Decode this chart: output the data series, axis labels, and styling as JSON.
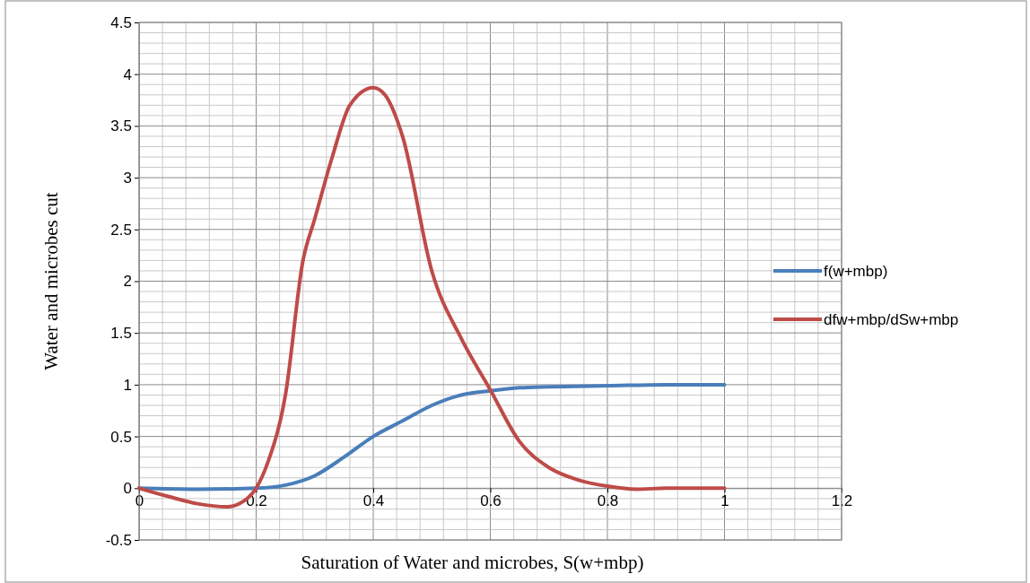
{
  "chart_data": {
    "type": "line",
    "xlabel": "Saturation of Water and microbes, S(w+mbp)",
    "ylabel": "Water and microbes cut",
    "xlim": [
      0,
      1.2
    ],
    "xticks": [
      0,
      0.2,
      0.4,
      0.6,
      0.8,
      1,
      1.2
    ],
    "ylim": [
      -0.5,
      4.5
    ],
    "yticks": [
      -0.5,
      0,
      0.5,
      1,
      1.5,
      2,
      2.5,
      3,
      3.5,
      4,
      4.5
    ],
    "grid": true,
    "legend": "right",
    "marker": "none",
    "line_style": "solid",
    "series": [
      {
        "name": "f(w+mbp)",
        "color": "#4a7ebb",
        "x": [
          0,
          0.1,
          0.2,
          0.25,
          0.3,
          0.35,
          0.4,
          0.45,
          0.5,
          0.55,
          0.6,
          0.65,
          0.7,
          0.8,
          0.9,
          1
        ],
        "values": [
          0,
          -0.01,
          0,
          0.03,
          0.12,
          0.3,
          0.5,
          0.65,
          0.8,
          0.9,
          0.94,
          0.97,
          0.98,
          0.99,
          1,
          1
        ]
      },
      {
        "name": "dfw+mbp/dSw+mbp",
        "color": "#be4b48",
        "x": [
          0,
          0.05,
          0.1,
          0.15,
          0.18,
          0.2,
          0.22,
          0.25,
          0.28,
          0.3,
          0.33,
          0.36,
          0.4,
          0.42,
          0.45,
          0.5,
          0.55,
          0.6,
          0.65,
          0.7,
          0.75,
          0.8,
          0.85,
          0.9,
          1
        ],
        "values": [
          0,
          -0.08,
          -0.15,
          -0.18,
          -0.12,
          0,
          0.25,
          0.9,
          2.2,
          2.6,
          3.2,
          3.7,
          3.87,
          3.8,
          3.4,
          2.1,
          1.45,
          0.95,
          0.45,
          0.2,
          0.08,
          0.02,
          -0.01,
          0,
          0
        ]
      }
    ]
  }
}
